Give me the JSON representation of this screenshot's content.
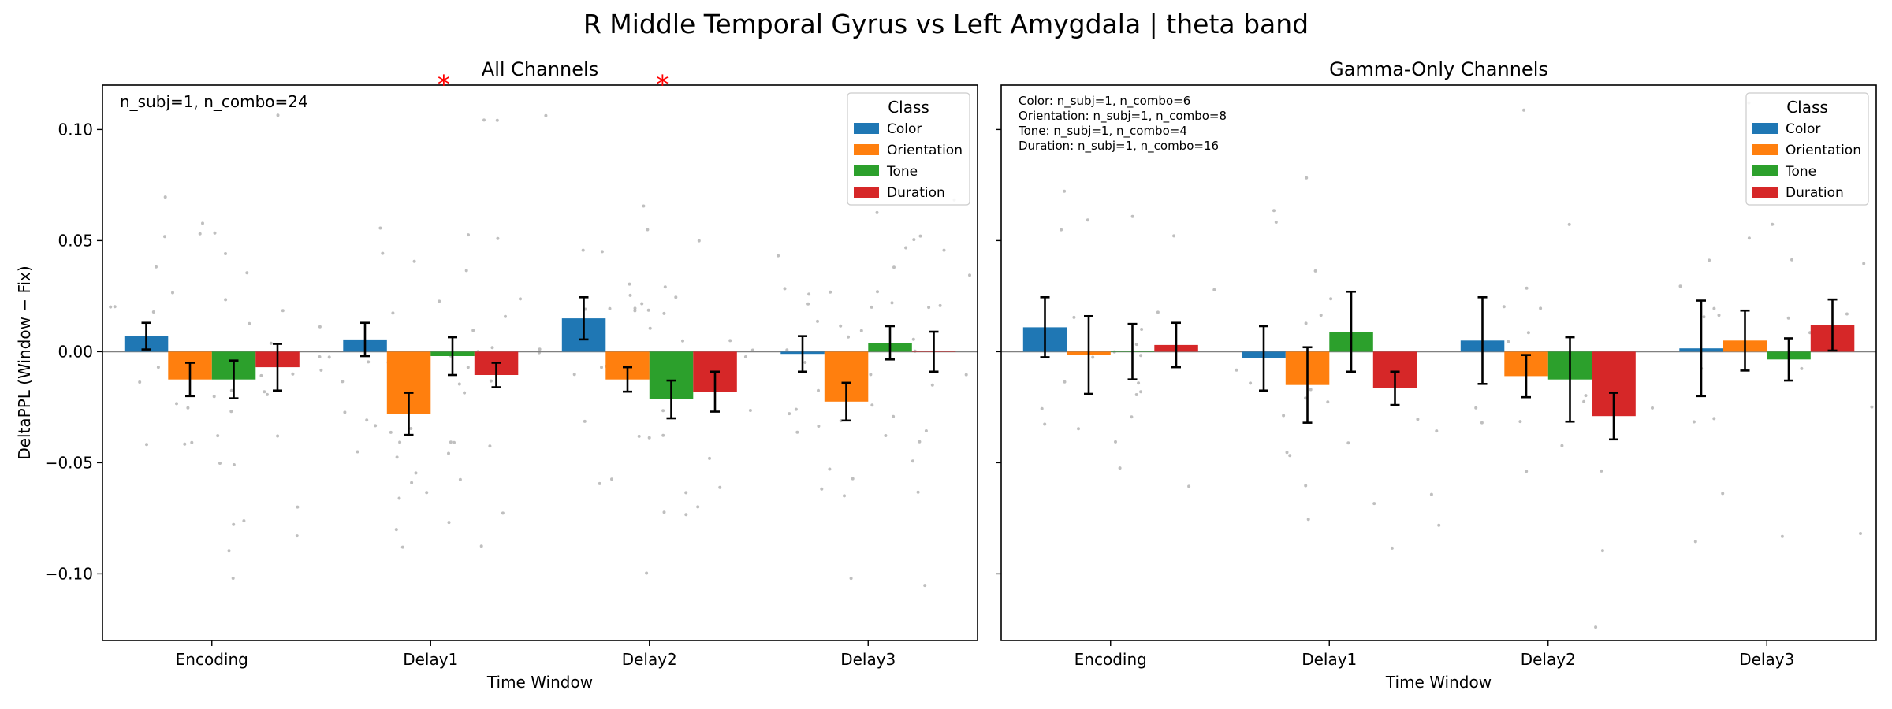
{
  "figure": {
    "title": "R Middle Temporal Gyrus vs Left Amygdala  |  theta band"
  },
  "colors": {
    "Color": "#1f77b4",
    "Orientation": "#ff7f0e",
    "Tone": "#2ca02c",
    "Duration": "#d62728",
    "significance": "#ff0000",
    "points": "#aaaaaa"
  },
  "chart_data": [
    {
      "type": "bar",
      "title": "All Channels",
      "xlabel": "Time Window",
      "ylabel": "DeltaPPL (Window − Fix)",
      "ylim": [
        -0.13,
        0.12
      ],
      "yticks": [
        -0.1,
        -0.05,
        0.0,
        0.05,
        0.1
      ],
      "ytick_labels": [
        "−0.10",
        "−0.05",
        "0.00",
        "0.05",
        "0.10"
      ],
      "categories": [
        "Encoding",
        "Delay1",
        "Delay2",
        "Delay3"
      ],
      "legend": {
        "title": "Class",
        "position": "top-right"
      },
      "annotation": "n_subj=1, n_combo=24",
      "significance_markers": [
        {
          "category": "Delay1",
          "symbol": "*"
        },
        {
          "category": "Delay2",
          "symbol": "*"
        }
      ],
      "series": [
        {
          "name": "Color",
          "values": [
            0.007,
            0.0055,
            0.015,
            -0.001
          ],
          "err": [
            0.006,
            0.0075,
            0.0095,
            0.008
          ]
        },
        {
          "name": "Orientation",
          "values": [
            -0.0125,
            -0.028,
            -0.0125,
            -0.0225
          ],
          "err": [
            0.0075,
            0.0095,
            0.0055,
            0.0085
          ]
        },
        {
          "name": "Tone",
          "values": [
            -0.0125,
            -0.002,
            -0.0215,
            0.004
          ],
          "err": [
            0.0085,
            0.0085,
            0.0085,
            0.0075
          ]
        },
        {
          "name": "Duration",
          "values": [
            -0.007,
            -0.0105,
            -0.018,
            0.0
          ],
          "err": [
            0.0105,
            0.0055,
            0.009,
            0.009
          ]
        }
      ],
      "grid": false
    },
    {
      "type": "bar",
      "title": "Gamma-Only Channels",
      "xlabel": "Time Window",
      "ylabel": "",
      "ylim": [
        -0.13,
        0.12
      ],
      "yticks": [
        -0.1,
        -0.05,
        0.0,
        0.05,
        0.1
      ],
      "categories": [
        "Encoding",
        "Delay1",
        "Delay2",
        "Delay3"
      ],
      "legend": {
        "title": "Class",
        "position": "top-right"
      },
      "annotation_lines": [
        "Color: n_subj=1, n_combo=6",
        "Orientation: n_subj=1, n_combo=8",
        "Tone: n_subj=1, n_combo=4",
        "Duration: n_subj=1, n_combo=16"
      ],
      "series": [
        {
          "name": "Color",
          "values": [
            0.011,
            -0.003,
            0.005,
            0.0015
          ],
          "err": [
            0.0135,
            0.0145,
            0.0195,
            0.0215
          ]
        },
        {
          "name": "Orientation",
          "values": [
            -0.0015,
            -0.015,
            -0.011,
            0.005
          ],
          "err": [
            0.0175,
            0.017,
            0.0095,
            0.0135
          ]
        },
        {
          "name": "Tone",
          "values": [
            0.0,
            0.009,
            -0.0125,
            -0.0035
          ],
          "err": [
            0.0125,
            0.018,
            0.019,
            0.0095
          ]
        },
        {
          "name": "Duration",
          "values": [
            0.003,
            -0.0165,
            -0.029,
            0.012
          ],
          "err": [
            0.01,
            0.0075,
            0.0105,
            0.0115
          ]
        }
      ],
      "grid": false
    }
  ]
}
